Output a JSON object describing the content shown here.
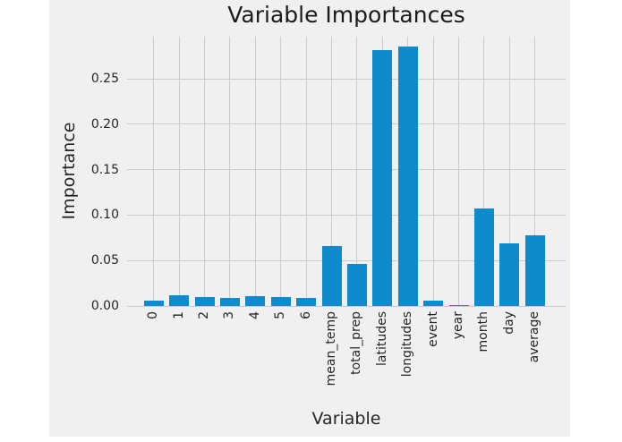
{
  "chart_data": {
    "type": "bar",
    "title": "Variable Importances",
    "xlabel": "Variable",
    "ylabel": "Importance",
    "categories": [
      "0",
      "1",
      "2",
      "3",
      "4",
      "5",
      "6",
      "mean_temp",
      "total_prep",
      "latitudes",
      "longitudes",
      "event",
      "year",
      "month",
      "day",
      "average"
    ],
    "values": [
      0.006,
      0.012,
      0.01,
      0.009,
      0.011,
      0.01,
      0.009,
      0.066,
      0.046,
      0.282,
      0.285,
      0.006,
      0.001,
      0.107,
      0.069,
      0.078
    ],
    "yticks": [
      0.0,
      0.05,
      0.1,
      0.15,
      0.2,
      0.25
    ],
    "ytick_labels": [
      "0.00",
      "0.05",
      "0.10",
      "0.15",
      "0.20",
      "0.25"
    ],
    "ylim": [
      0,
      0.2963
    ],
    "grid": true,
    "legend": null,
    "bar_color": "#0e8acd",
    "figure_background": "#f0f0f0",
    "grid_color": "#cbcbcb",
    "text_color": "#262626"
  }
}
